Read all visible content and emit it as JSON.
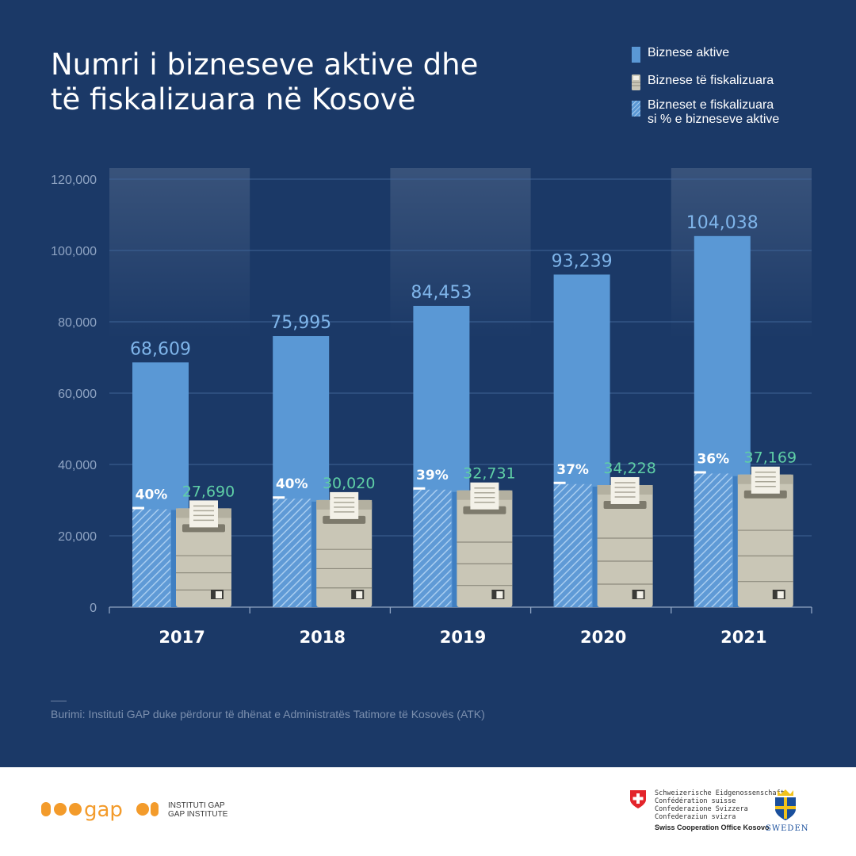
{
  "title": {
    "line1": "Numri i bizneseve aktive dhe",
    "line2": "të fiskalizuara në Kosovë"
  },
  "legend": {
    "active": "Biznese aktive",
    "fiscal": "Biznese të fiskalizuara",
    "share_line1": "Bizneset e fiskalizuara",
    "share_line2": "si % e bizneseve aktive"
  },
  "colors": {
    "background": "#1b3967",
    "active_bar": "#5a98d5",
    "fiscal_label": "#5fcfa6",
    "share_hatch": "#7fb3e6",
    "machine": "#c9c6b6"
  },
  "chart_data": {
    "type": "bar",
    "categories": [
      "2017",
      "2018",
      "2019",
      "2020",
      "2021"
    ],
    "series": [
      {
        "name": "Biznese aktive",
        "values": [
          68609,
          75995,
          84453,
          93239,
          104038
        ],
        "labels": [
          "68,609",
          "75,995",
          "84,453",
          "93,239",
          "104,038"
        ]
      },
      {
        "name": "Biznese të fiskalizuara",
        "values": [
          27690,
          30020,
          32731,
          34228,
          37169
        ],
        "labels": [
          "27,690",
          "30,020",
          "32,731",
          "34,228",
          "37,169"
        ]
      },
      {
        "name": "Bizneset e fiskalizuara si % e bizneseve aktive",
        "values": [
          40,
          40,
          39,
          37,
          36
        ],
        "labels": [
          "40%",
          "40%",
          "39%",
          "37%",
          "36%"
        ]
      }
    ],
    "yticks": [
      "0",
      "20,000",
      "40,000",
      "60,000",
      "80,000",
      "100,000",
      "120,000"
    ],
    "ytick_values": [
      0,
      20000,
      40000,
      60000,
      80000,
      100000,
      120000
    ],
    "ylim": [
      0,
      120000
    ],
    "grid": true,
    "legend_position": "top-right"
  },
  "source": "Burimi: Instituti GAP duke përdorur të dhënat e Administratës Tatimore të Kosovës (ATK)",
  "footer": {
    "gap_line1": "INSTITUTI GAP",
    "gap_line2": "GAP INSTITUTE",
    "gap_logo_text": "gap",
    "swiss_lines": [
      "Schweizerische Eidgenossenschaft",
      "Confédération suisse",
      "Confederazione Svizzera",
      "Confederaziun svizra"
    ],
    "swiss_office": "Swiss Cooperation Office Kosovo",
    "sweden": "SWEDEN"
  }
}
